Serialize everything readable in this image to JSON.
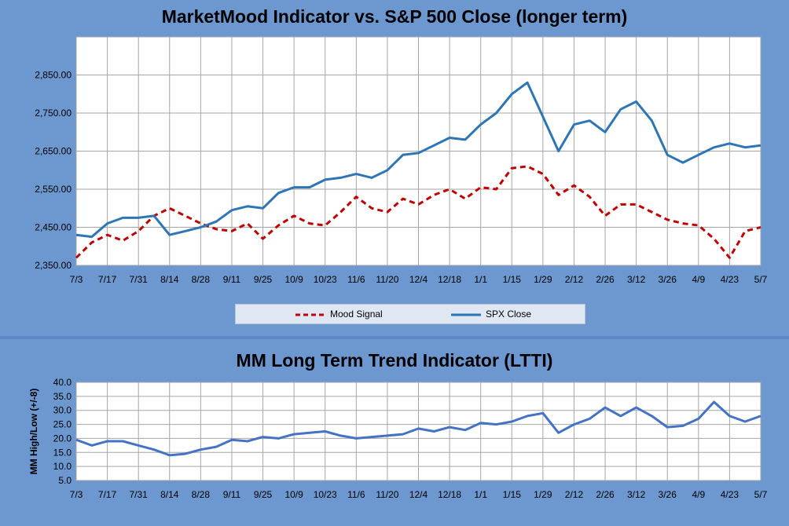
{
  "chart_data": [
    {
      "type": "line",
      "title": "MarketMood Indicator vs. S&P 500 Close (longer term)",
      "ylim": [
        2350,
        2950
      ],
      "yticks": [
        "2,350.00",
        "2,450.00",
        "2,550.00",
        "2,650.00",
        "2,750.00",
        "2,850.00"
      ],
      "yvalues": [
        2350,
        2450,
        2550,
        2650,
        2750,
        2850
      ],
      "xticks": [
        "7/3",
        "7/17",
        "7/31",
        "8/14",
        "8/28",
        "9/11",
        "9/25",
        "10/9",
        "10/23",
        "11/6",
        "11/20",
        "12/4",
        "12/18",
        "1/1",
        "1/15",
        "1/29",
        "2/12",
        "2/26",
        "3/12",
        "3/26",
        "4/9",
        "4/23",
        "5/7"
      ],
      "grid": true,
      "legend_position": "bottom",
      "series": [
        {
          "name": "Mood Signal",
          "color": "#c00000",
          "style": "dashed",
          "x": [
            "7/3",
            "7/10",
            "7/17",
            "7/24",
            "7/31",
            "8/7",
            "8/14",
            "8/21",
            "8/28",
            "9/4",
            "9/11",
            "9/18",
            "9/25",
            "10/2",
            "10/9",
            "10/16",
            "10/23",
            "10/30",
            "11/6",
            "11/13",
            "11/20",
            "11/27",
            "12/4",
            "12/11",
            "12/18",
            "12/25",
            "1/1",
            "1/8",
            "1/15",
            "1/22",
            "1/29",
            "2/5",
            "2/12",
            "2/19",
            "2/26",
            "3/5",
            "3/12",
            "3/19",
            "3/26",
            "4/2",
            "4/9",
            "4/16",
            "4/23",
            "4/30",
            "5/7"
          ],
          "values": [
            2370,
            2410,
            2430,
            2415,
            2440,
            2480,
            2500,
            2480,
            2460,
            2445,
            2440,
            2460,
            2420,
            2455,
            2480,
            2460,
            2455,
            2490,
            2530,
            2500,
            2490,
            2525,
            2510,
            2535,
            2550,
            2525,
            2555,
            2550,
            2605,
            2610,
            2590,
            2535,
            2560,
            2530,
            2480,
            2510,
            2510,
            2490,
            2470,
            2460,
            2455,
            2420,
            2370,
            2440,
            2450
          ]
        },
        {
          "name": "SPX Close",
          "color": "#2e75b6",
          "style": "solid",
          "x": [
            "7/3",
            "7/10",
            "7/17",
            "7/24",
            "7/31",
            "8/7",
            "8/14",
            "8/21",
            "8/28",
            "9/4",
            "9/11",
            "9/18",
            "9/25",
            "10/2",
            "10/9",
            "10/16",
            "10/23",
            "10/30",
            "11/6",
            "11/13",
            "11/20",
            "11/27",
            "12/4",
            "12/11",
            "12/18",
            "12/25",
            "1/1",
            "1/8",
            "1/15",
            "1/22",
            "1/29",
            "2/5",
            "2/12",
            "2/19",
            "2/26",
            "3/5",
            "3/12",
            "3/19",
            "3/26",
            "4/2",
            "4/9",
            "4/16",
            "4/23",
            "4/30",
            "5/7"
          ],
          "values": [
            2430,
            2425,
            2460,
            2475,
            2475,
            2480,
            2430,
            2440,
            2450,
            2465,
            2495,
            2505,
            2500,
            2540,
            2555,
            2555,
            2575,
            2580,
            2590,
            2580,
            2600,
            2640,
            2645,
            2665,
            2685,
            2680,
            2720,
            2750,
            2800,
            2830,
            2740,
            2650,
            2720,
            2730,
            2700,
            2760,
            2780,
            2730,
            2640,
            2620,
            2640,
            2660,
            2670,
            2660,
            2665
          ]
        }
      ]
    },
    {
      "type": "line",
      "title": "MM Long Term Trend Indicator (LTTI)",
      "ylabel": "MM High/Low (+/-8)",
      "ylim": [
        5,
        40
      ],
      "yticks": [
        "5.0",
        "10.0",
        "15.0",
        "20.0",
        "25.0",
        "30.0",
        "35.0",
        "40.0"
      ],
      "yvalues": [
        5,
        10,
        15,
        20,
        25,
        30,
        35,
        40
      ],
      "xticks": [
        "7/3",
        "7/17",
        "7/31",
        "8/14",
        "8/28",
        "9/11",
        "9/25",
        "10/9",
        "10/23",
        "11/6",
        "11/20",
        "12/4",
        "12/18",
        "1/1",
        "1/15",
        "1/29",
        "2/12",
        "2/26",
        "3/12",
        "3/26",
        "4/9",
        "4/23",
        "5/7"
      ],
      "grid": true,
      "series": [
        {
          "name": "",
          "color": "#4472c4",
          "style": "solid",
          "x": [
            "7/3",
            "7/10",
            "7/17",
            "7/24",
            "7/31",
            "8/7",
            "8/14",
            "8/21",
            "8/28",
            "9/4",
            "9/11",
            "9/18",
            "9/25",
            "10/2",
            "10/9",
            "10/16",
            "10/23",
            "10/30",
            "11/6",
            "11/13",
            "11/20",
            "11/27",
            "12/4",
            "12/11",
            "12/18",
            "12/25",
            "1/1",
            "1/8",
            "1/15",
            "1/22",
            "1/29",
            "2/5",
            "2/12",
            "2/19",
            "2/26",
            "3/5",
            "3/12",
            "3/19",
            "3/26",
            "4/2",
            "4/9",
            "4/16",
            "4/23",
            "4/30",
            "5/7"
          ],
          "values": [
            19.5,
            17.5,
            19.0,
            19.0,
            17.5,
            16.0,
            14.0,
            14.5,
            16.0,
            17.0,
            19.5,
            19.0,
            20.5,
            20.0,
            21.5,
            22.0,
            22.5,
            21.0,
            20.0,
            20.5,
            21.0,
            21.5,
            23.5,
            22.5,
            24.0,
            23.0,
            25.5,
            25.0,
            26.0,
            28.0,
            29.0,
            22.0,
            25.0,
            27.0,
            31.0,
            28.0,
            31.0,
            28.0,
            24.0,
            24.5,
            27.0,
            33.0,
            28.0,
            26.0,
            28.0
          ]
        }
      ]
    }
  ]
}
